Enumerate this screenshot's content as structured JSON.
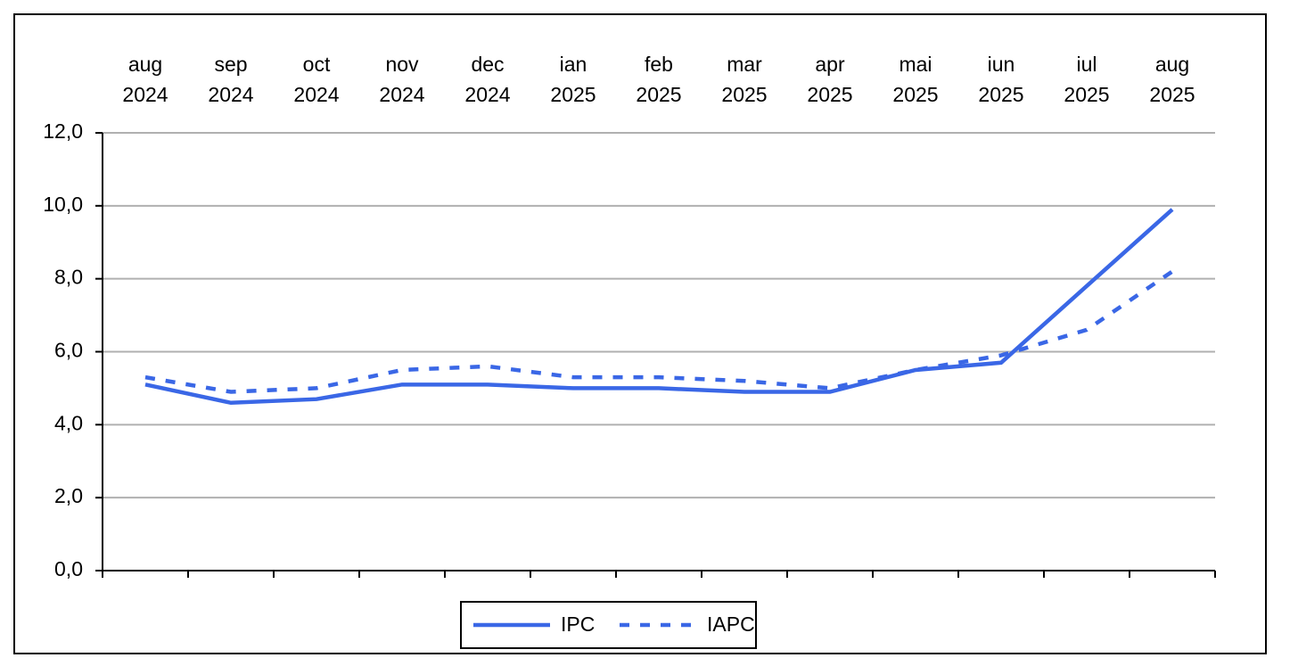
{
  "chart_data": {
    "type": "line",
    "categories": [
      "aug\n2024",
      "sep\n2024",
      "oct\n2024",
      "nov\n2024",
      "dec\n2024",
      "ian\n2025",
      "feb\n2025",
      "mar\n2025",
      "apr\n2025",
      "mai\n2025",
      "iun\n2025",
      "iul\n2025",
      "aug\n2025"
    ],
    "series": [
      {
        "name": "IPC",
        "color": "#3a67e6",
        "dash": false,
        "values": [
          5.1,
          4.6,
          4.7,
          5.1,
          5.1,
          5.0,
          5.0,
          4.9,
          4.9,
          5.5,
          5.7,
          7.8,
          9.9
        ]
      },
      {
        "name": "IAPC",
        "color": "#3a67e6",
        "dash": true,
        "values": [
          5.3,
          4.9,
          5.0,
          5.5,
          5.6,
          5.3,
          5.3,
          5.2,
          5.0,
          5.5,
          5.9,
          6.6,
          8.2
        ]
      }
    ],
    "ylim": [
      0,
      12
    ],
    "yticks": [
      {
        "value": 0,
        "label": "0,0"
      },
      {
        "value": 2,
        "label": "2,0"
      },
      {
        "value": 4,
        "label": "4,0"
      },
      {
        "value": 6,
        "label": "6,0"
      },
      {
        "value": 8,
        "label": "8,0"
      },
      {
        "value": 10,
        "label": "10,0"
      },
      {
        "value": 12,
        "label": "12,0"
      }
    ],
    "grid": true,
    "legend": "bottom"
  }
}
